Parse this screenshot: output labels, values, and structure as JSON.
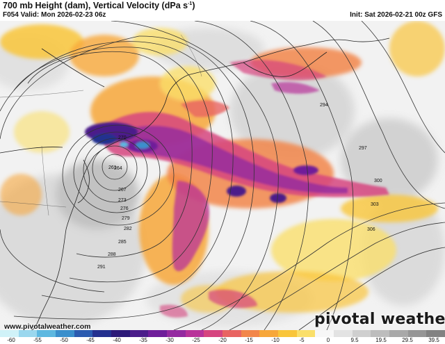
{
  "header": {
    "title_main": "700 mb Height (dam), Vertical Velocity (dPa s",
    "title_sup": "-1",
    "title_end": ")",
    "valid": "F054 Valid: Mon 2026-02-23 06z",
    "init": "Init: Sat 2026-02-21 00z GFS"
  },
  "map": {
    "background_color": "#f2f2f2",
    "coastline_color": "#222222",
    "contour_color": "#333333",
    "contour_labels": [
      "261",
      "264",
      "267",
      "270",
      "273",
      "276",
      "279",
      "282",
      "285",
      "288",
      "291",
      "294",
      "297",
      "300",
      "303",
      "306"
    ]
  },
  "watermark": "www.pivotalweather.com",
  "brand": "pivotal weather",
  "colorbar": {
    "ticks": [
      "-60",
      "-55",
      "-50",
      "-45",
      "-40",
      "-35",
      "-30",
      "-25",
      "-20",
      "-15",
      "-10",
      "-5",
      "0",
      "9.5",
      "19.5",
      "29.5",
      "39.5"
    ],
    "colors": [
      "#d0f2f8",
      "#9ad7ee",
      "#5db8e0",
      "#3a8fcc",
      "#2b5bb0",
      "#24308f",
      "#2c1a78",
      "#4b1e8a",
      "#6f1f9a",
      "#942aa0",
      "#b8339a",
      "#d6457f",
      "#e86462",
      "#f2864a",
      "#f7a73a",
      "#f9c53a",
      "#fadf6a",
      "#f7f7f7",
      "#e3e3e3",
      "#cfcfcf",
      "#bdbdbd",
      "#a9a9a9",
      "#969696",
      "#828282"
    ]
  }
}
